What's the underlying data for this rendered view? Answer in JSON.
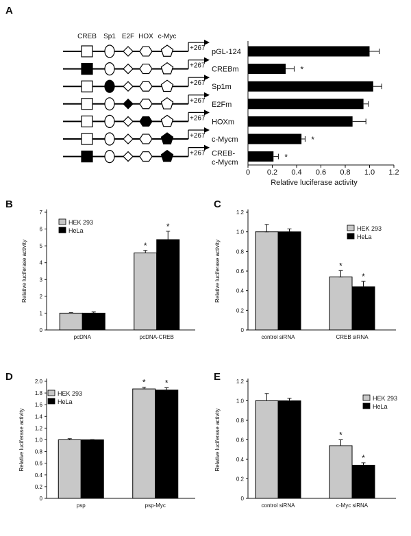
{
  "colors": {
    "light": "#c8c8c8",
    "dark": "#000000",
    "line": "#111111"
  },
  "chart_data": [
    {
      "panel": "A",
      "type": "bar",
      "orientation": "horizontal",
      "tf_sites": [
        "CREB",
        "Sp1",
        "E2F",
        "HOX",
        "c-Myc"
      ],
      "site_shapes": [
        "square",
        "circle",
        "diamond",
        "hexagon",
        "pentagon"
      ],
      "tss_label": "+267",
      "constructs": [
        {
          "label": "pGL-124",
          "mutated": [],
          "value": 1.0,
          "error": 0.08,
          "sig": ""
        },
        {
          "label": "CREBm",
          "mutated": [
            0
          ],
          "value": 0.31,
          "error": 0.07,
          "sig": "*"
        },
        {
          "label": "Sp1m",
          "mutated": [
            1
          ],
          "value": 1.03,
          "error": 0.07,
          "sig": ""
        },
        {
          "label": "E2Fm",
          "mutated": [
            2
          ],
          "value": 0.95,
          "error": 0.04,
          "sig": ""
        },
        {
          "label": "HOXm",
          "mutated": [
            3
          ],
          "value": 0.86,
          "error": 0.11,
          "sig": ""
        },
        {
          "label": "c-Mycm",
          "mutated": [
            4
          ],
          "value": 0.44,
          "error": 0.03,
          "sig": "*"
        },
        {
          "label": "CREB-",
          "label2": "c-Mycm",
          "mutated": [
            0,
            4
          ],
          "value": 0.21,
          "error": 0.04,
          "sig": "*"
        }
      ],
      "xlabel": "Relative luciferase activity",
      "xlim": [
        0,
        1.2
      ],
      "xticks": [
        "0",
        "0.2",
        "0.4",
        "0.6",
        "0.8",
        "1.0",
        "1.2"
      ]
    },
    {
      "panel": "B",
      "type": "bar",
      "categories": [
        "pcDNA",
        "pcDNA-CREB"
      ],
      "series": [
        {
          "name": "HEK 293",
          "values": [
            1.0,
            4.58
          ],
          "errors": [
            0.03,
            0.15
          ],
          "sig": [
            "",
            "*"
          ]
        },
        {
          "name": "HeLa",
          "values": [
            1.0,
            5.37
          ],
          "errors": [
            0.07,
            0.5
          ],
          "sig": [
            "",
            "*"
          ]
        }
      ],
      "ylabel": "Relative luciferase activity",
      "ylim": [
        0,
        7
      ],
      "yticks": [
        "0",
        "1",
        "2",
        "3",
        "4",
        "5",
        "6",
        "7"
      ],
      "legend": "top-left"
    },
    {
      "panel": "C",
      "type": "bar",
      "categories": [
        "control siRNA",
        "CREB siRNA"
      ],
      "series": [
        {
          "name": "HEK 293",
          "values": [
            1.0,
            0.54
          ],
          "errors": [
            0.075,
            0.065
          ],
          "sig": [
            "",
            "*"
          ]
        },
        {
          "name": "HeLa",
          "values": [
            1.0,
            0.44
          ],
          "errors": [
            0.03,
            0.055
          ],
          "sig": [
            "",
            "*"
          ]
        }
      ],
      "ylabel": "Relative luciferase activity",
      "ylim": [
        0,
        1.2
      ],
      "yticks": [
        "0",
        "0.2",
        "0.4",
        "0.6",
        "0.8",
        "1.0",
        "1.2"
      ],
      "legend": "top-right"
    },
    {
      "panel": "D",
      "type": "bar",
      "categories": [
        "psp",
        "psp-Myc"
      ],
      "series": [
        {
          "name": "HEK 293",
          "values": [
            1.0,
            1.87
          ],
          "errors": [
            0.02,
            0.03
          ],
          "sig": [
            "",
            "*"
          ]
        },
        {
          "name": "HeLa",
          "values": [
            1.0,
            1.85
          ],
          "errors": [
            0.005,
            0.04
          ],
          "sig": [
            "",
            "*"
          ]
        }
      ],
      "ylabel": "Relative luciferase activity",
      "ylim": [
        0,
        2.0
      ],
      "yticks": [
        "0",
        "0.2",
        "0.4",
        "0.6",
        "0.8",
        "1.0",
        "1.2",
        "1.4",
        "1.6",
        "1.8",
        "2.0"
      ],
      "legend": "top-left"
    },
    {
      "panel": "E",
      "type": "bar",
      "categories": [
        "control siRNA",
        "c-Myc siRNA"
      ],
      "series": [
        {
          "name": "HEK 293",
          "values": [
            1.0,
            0.54
          ],
          "errors": [
            0.075,
            0.06
          ],
          "sig": [
            "",
            "*"
          ]
        },
        {
          "name": "HeLa",
          "values": [
            1.0,
            0.34
          ],
          "errors": [
            0.025,
            0.025
          ],
          "sig": [
            "",
            "*"
          ]
        }
      ],
      "ylabel": "Relative luciferase activity",
      "ylim": [
        0,
        1.2
      ],
      "yticks": [
        "0",
        "0.2",
        "0.4",
        "0.6",
        "0.8",
        "1.0",
        "1.2"
      ],
      "legend": "top-right"
    }
  ]
}
